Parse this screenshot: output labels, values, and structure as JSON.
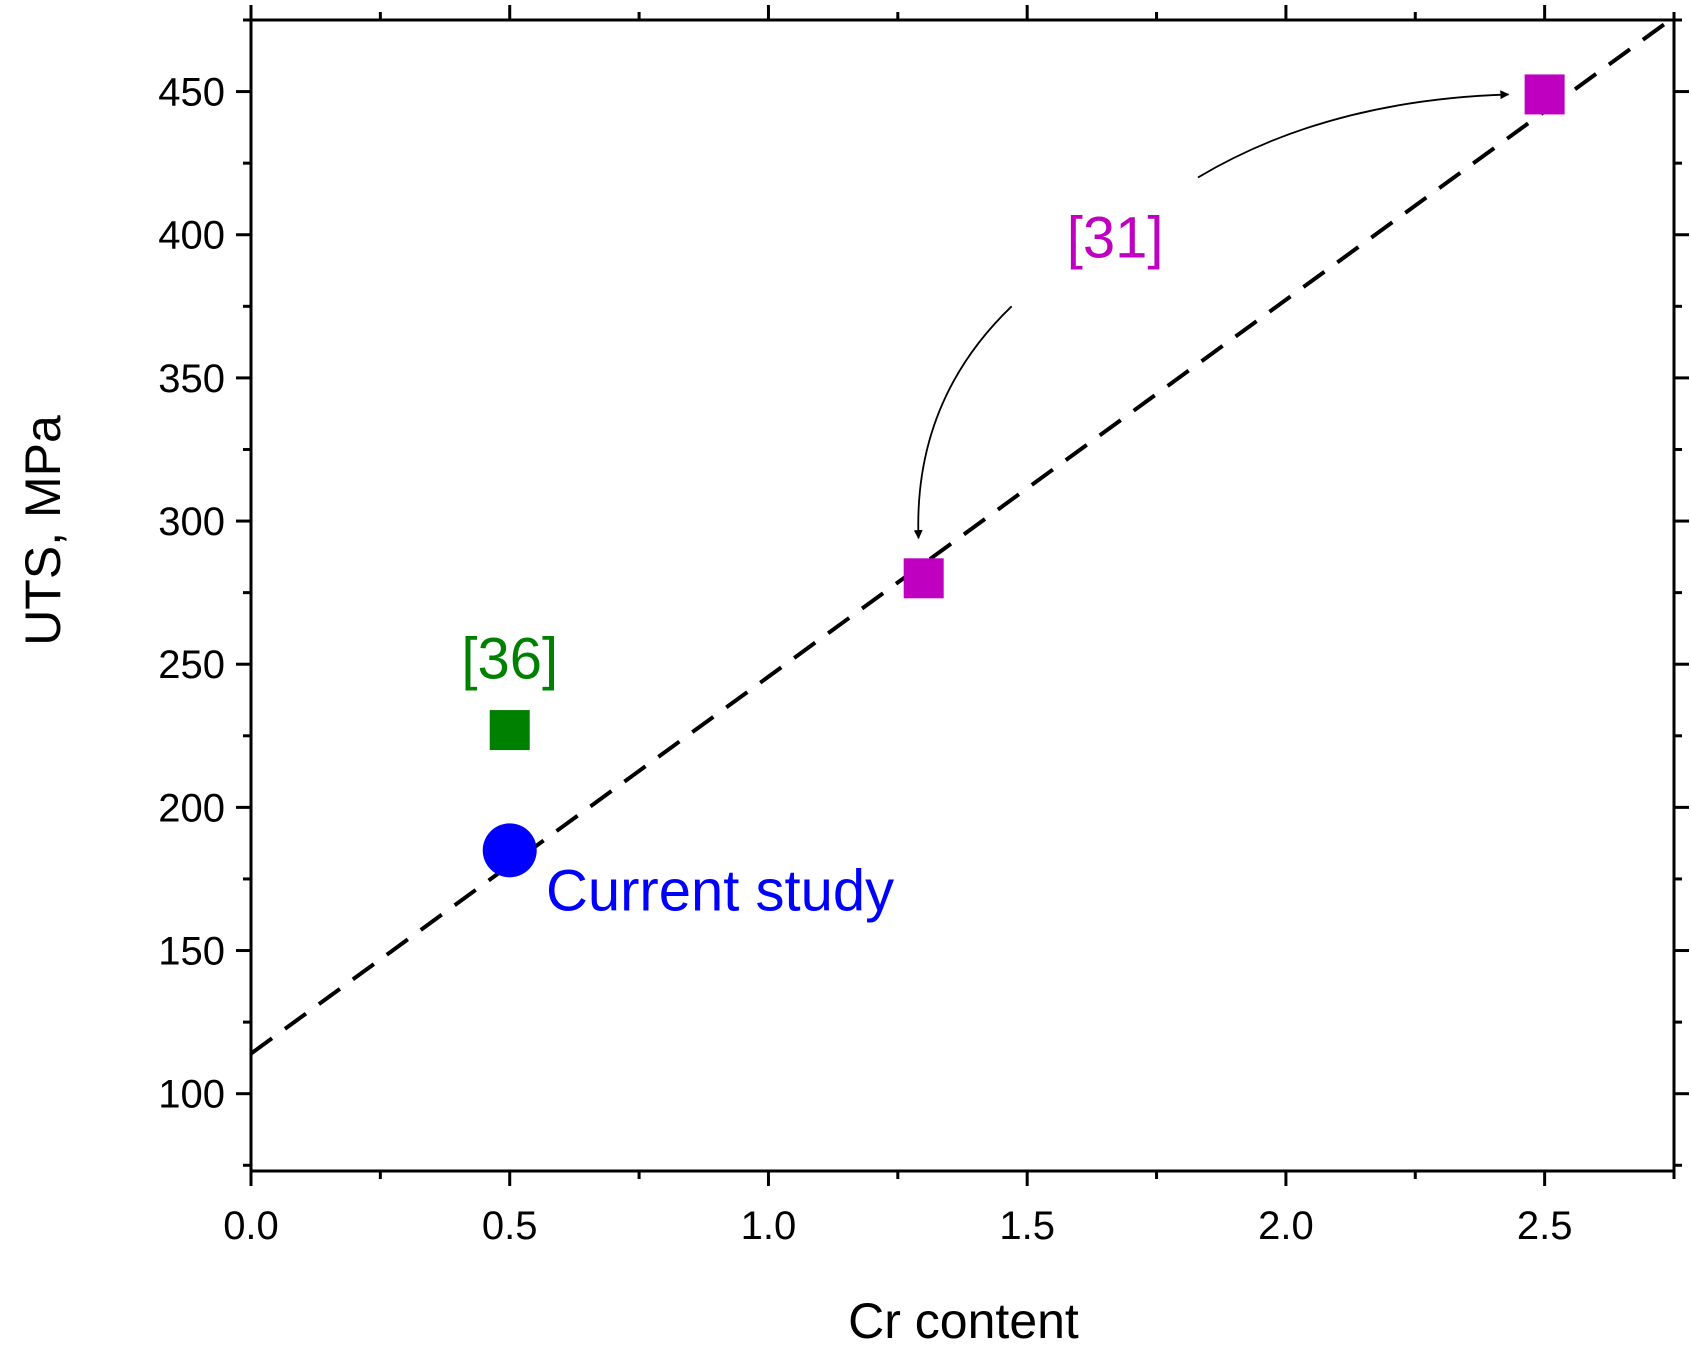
{
  "chart_data": {
    "type": "scatter",
    "title": "",
    "xlabel": "Cr content",
    "ylabel": "UTS, MPa",
    "xlim": [
      0,
      2.75
    ],
    "ylim": [
      73,
      475
    ],
    "x_ticks": [
      0.0,
      0.5,
      1.0,
      1.5,
      2.0,
      2.5
    ],
    "x_tick_labels": [
      "0.0",
      "0.5",
      "1.0",
      "1.5",
      "2.0",
      "2.5"
    ],
    "x_minor_step": 0.25,
    "y_ticks": [
      100,
      150,
      200,
      250,
      300,
      350,
      400,
      450
    ],
    "y_tick_labels": [
      "100",
      "150",
      "200",
      "250",
      "300",
      "350",
      "400",
      "450"
    ],
    "y_minor_step": 25,
    "grid": false,
    "series": [
      {
        "name": "Current study",
        "marker": "circle",
        "color": "#0000ff",
        "points": [
          {
            "x": 0.5,
            "y": 185
          }
        ]
      },
      {
        "name": "[36]",
        "marker": "square",
        "color": "#008000",
        "points": [
          {
            "x": 0.5,
            "y": 227
          }
        ]
      },
      {
        "name": "[31]",
        "marker": "square",
        "color": "#c000c0",
        "points": [
          {
            "x": 1.3,
            "y": 280
          },
          {
            "x": 2.5,
            "y": 449
          }
        ]
      }
    ],
    "trendline": {
      "style": "dashed",
      "color": "#000000",
      "from": {
        "x": 0.0,
        "y": 114
      },
      "to": {
        "x": 2.75,
        "y": 476
      }
    },
    "annotations": [
      {
        "text": "Current study",
        "color": "#0000ff",
        "x": 0.57,
        "y": 164
      },
      {
        "text": "[36]",
        "color": "#008000",
        "x": 0.5,
        "y": 245
      },
      {
        "text": "[31]",
        "color": "#c000c0",
        "x": 1.67,
        "y": 392
      }
    ],
    "arrows": [
      {
        "from": {
          "x": 1.47,
          "y": 375
        },
        "to": {
          "x": 1.29,
          "y": 294
        },
        "control": {
          "x": 1.28,
          "y": 342
        },
        "color": "#000000"
      },
      {
        "from": {
          "x": 1.83,
          "y": 420
        },
        "to": {
          "x": 2.43,
          "y": 449
        },
        "control": {
          "x": 2.08,
          "y": 447
        },
        "color": "#000000"
      }
    ]
  }
}
